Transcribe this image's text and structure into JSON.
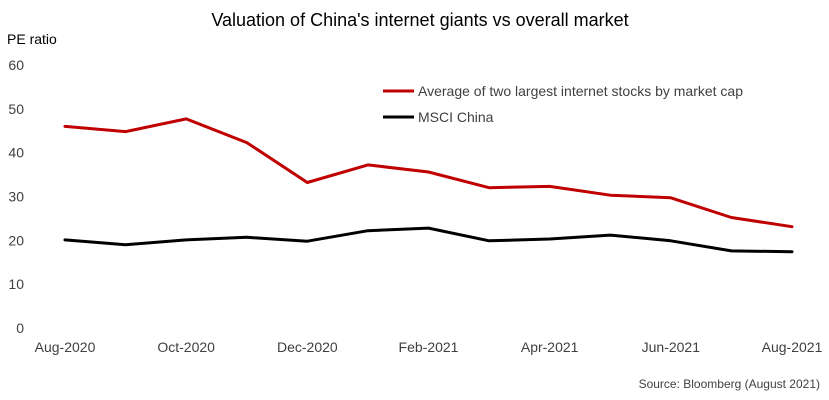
{
  "chart_data": {
    "type": "line",
    "title": "Valuation of China's internet giants vs overall market",
    "ylabel": "PE ratio",
    "xlabel": "",
    "ylim": [
      0,
      60
    ],
    "yticks": [
      0,
      10,
      20,
      30,
      40,
      50,
      60
    ],
    "categories": [
      "Aug-2020",
      "Sep-2020",
      "Oct-2020",
      "Nov-2020",
      "Dec-2020",
      "Jan-2021",
      "Feb-2021",
      "Mar-2021",
      "Apr-2021",
      "May-2021",
      "Jun-2021",
      "Jul-2021",
      "Aug-2021"
    ],
    "xtick_labels": [
      "Aug-2020",
      "Oct-2020",
      "Dec-2020",
      "Feb-2021",
      "Apr-2021",
      "Jun-2021",
      "Aug-2021"
    ],
    "series": [
      {
        "name": "Average of two largest internet stocks by market cap",
        "color": "#c00000",
        "values": [
          46.0,
          44.8,
          47.7,
          42.3,
          33.2,
          37.2,
          35.6,
          32.0,
          32.3,
          30.3,
          29.7,
          25.2,
          23.1
        ]
      },
      {
        "name": "MSCI China",
        "color": "#000000",
        "values": [
          20.1,
          19.0,
          20.1,
          20.7,
          19.8,
          22.2,
          22.8,
          19.9,
          20.3,
          21.2,
          19.9,
          17.6,
          17.4
        ]
      }
    ],
    "legend_position": "top-right",
    "grid": false,
    "source": "Source: Bloomberg (August 2021)"
  }
}
